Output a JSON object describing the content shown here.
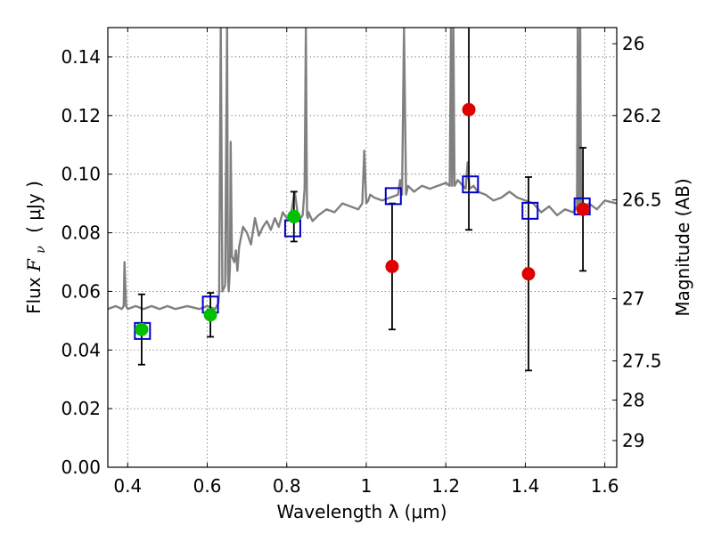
{
  "chart_data": {
    "type": "scatter",
    "xlabel": "Wavelength  λ (μm)",
    "ylabel_left": {
      "prefix": "Flux ",
      "symbol": "F",
      "subscript": "ν",
      "unit": "( μJy )"
    },
    "ylabel_right": "Magnitude (AB)",
    "xlim": [
      0.35,
      1.63
    ],
    "ylim": [
      0.0,
      0.15
    ],
    "grid": true,
    "x_ticks": [
      {
        "value": 0.4,
        "label": "0.4"
      },
      {
        "value": 0.6,
        "label": "0.6"
      },
      {
        "value": 0.8,
        "label": "0.8"
      },
      {
        "value": 1.0,
        "label": "1"
      },
      {
        "value": 1.2,
        "label": "1.2"
      },
      {
        "value": 1.4,
        "label": "1.4"
      },
      {
        "value": 1.6,
        "label": "1.6"
      }
    ],
    "y_ticks": [
      {
        "value": 0.0,
        "label": "0.00"
      },
      {
        "value": 0.02,
        "label": "0.02"
      },
      {
        "value": 0.04,
        "label": "0.04"
      },
      {
        "value": 0.06,
        "label": "0.06"
      },
      {
        "value": 0.08,
        "label": "0.08"
      },
      {
        "value": 0.1,
        "label": "0.10"
      },
      {
        "value": 0.12,
        "label": "0.12"
      },
      {
        "value": 0.14,
        "label": "0.14"
      }
    ],
    "right_ticks": [
      {
        "flux": 0.1445,
        "label": "26"
      },
      {
        "flux": 0.12,
        "label": "26.2"
      },
      {
        "flux": 0.0912,
        "label": "26.5"
      },
      {
        "flux": 0.0575,
        "label": "27"
      },
      {
        "flux": 0.0363,
        "label": "27.5"
      },
      {
        "flux": 0.0229,
        "label": "28"
      },
      {
        "flux": 0.0091,
        "label": "29"
      }
    ],
    "model_spectrum": {
      "color": "#808080",
      "x": [
        0.35,
        0.37,
        0.385,
        0.39,
        0.392,
        0.396,
        0.4,
        0.42,
        0.44,
        0.46,
        0.48,
        0.5,
        0.52,
        0.55,
        0.58,
        0.6,
        0.62,
        0.628,
        0.63,
        0.634,
        0.638,
        0.645,
        0.65,
        0.652,
        0.654,
        0.657,
        0.659,
        0.662,
        0.668,
        0.672,
        0.676,
        0.68,
        0.69,
        0.7,
        0.71,
        0.72,
        0.73,
        0.74,
        0.75,
        0.76,
        0.77,
        0.78,
        0.79,
        0.8,
        0.81,
        0.82,
        0.83,
        0.84,
        0.845,
        0.848,
        0.851,
        0.853,
        0.855,
        0.858,
        0.865,
        0.88,
        0.9,
        0.92,
        0.94,
        0.96,
        0.98,
        0.99,
        0.995,
        1.0,
        1.005,
        1.01,
        1.02,
        1.04,
        1.06,
        1.08,
        1.085,
        1.09,
        1.095,
        1.1,
        1.105,
        1.12,
        1.14,
        1.16,
        1.18,
        1.2,
        1.21,
        1.213,
        1.216,
        1.219,
        1.222,
        1.23,
        1.25,
        1.255,
        1.26,
        1.27,
        1.28,
        1.3,
        1.32,
        1.34,
        1.36,
        1.38,
        1.4,
        1.42,
        1.44,
        1.46,
        1.48,
        1.5,
        1.52,
        1.53,
        1.532,
        1.535,
        1.538,
        1.54,
        1.545,
        1.56,
        1.58,
        1.6,
        1.63
      ],
      "y": [
        0.054,
        0.055,
        0.054,
        0.055,
        0.07,
        0.055,
        0.054,
        0.055,
        0.054,
        0.055,
        0.054,
        0.055,
        0.054,
        0.055,
        0.054,
        0.055,
        0.054,
        0.056,
        0.06,
        0.15,
        0.06,
        0.062,
        0.15,
        0.066,
        0.06,
        0.068,
        0.111,
        0.072,
        0.07,
        0.074,
        0.067,
        0.075,
        0.082,
        0.08,
        0.076,
        0.085,
        0.079,
        0.082,
        0.084,
        0.081,
        0.085,
        0.082,
        0.087,
        0.085,
        0.086,
        0.094,
        0.084,
        0.086,
        0.095,
        0.15,
        0.086,
        0.085,
        0.087,
        0.086,
        0.084,
        0.086,
        0.088,
        0.087,
        0.09,
        0.089,
        0.088,
        0.09,
        0.108,
        0.09,
        0.091,
        0.093,
        0.092,
        0.091,
        0.092,
        0.093,
        0.098,
        0.093,
        0.15,
        0.093,
        0.096,
        0.094,
        0.096,
        0.095,
        0.096,
        0.097,
        0.096,
        0.15,
        0.096,
        0.15,
        0.096,
        0.098,
        0.095,
        0.104,
        0.095,
        0.096,
        0.094,
        0.093,
        0.091,
        0.092,
        0.094,
        0.092,
        0.091,
        0.09,
        0.087,
        0.089,
        0.086,
        0.088,
        0.087,
        0.089,
        0.15,
        0.09,
        0.15,
        0.089,
        0.088,
        0.09,
        0.088,
        0.091,
        0.09
      ]
    },
    "green_points": {
      "color": "#00c000",
      "points": [
        {
          "x": 0.435,
          "y": 0.047,
          "yerr": 0.012
        },
        {
          "x": 0.608,
          "y": 0.052,
          "yerr": 0.0075
        },
        {
          "x": 0.818,
          "y": 0.0855,
          "yerr": 0.0085
        }
      ]
    },
    "red_points": {
      "color": "#e00000",
      "points": [
        {
          "x": 1.065,
          "y": 0.0685,
          "yerr": 0.0215
        },
        {
          "x": 1.258,
          "y": 0.122,
          "yerr": 0.041
        },
        {
          "x": 1.408,
          "y": 0.066,
          "yerr": 0.033
        },
        {
          "x": 1.545,
          "y": 0.088,
          "yerr": 0.021
        }
      ]
    },
    "model_bands": {
      "color": "#0000cc",
      "points": [
        {
          "x": 0.437,
          "y": 0.0465
        },
        {
          "x": 0.608,
          "y": 0.0555
        },
        {
          "x": 0.815,
          "y": 0.0815
        },
        {
          "x": 1.068,
          "y": 0.0925
        },
        {
          "x": 1.262,
          "y": 0.0965
        },
        {
          "x": 1.412,
          "y": 0.0875
        },
        {
          "x": 1.543,
          "y": 0.089
        }
      ]
    }
  }
}
